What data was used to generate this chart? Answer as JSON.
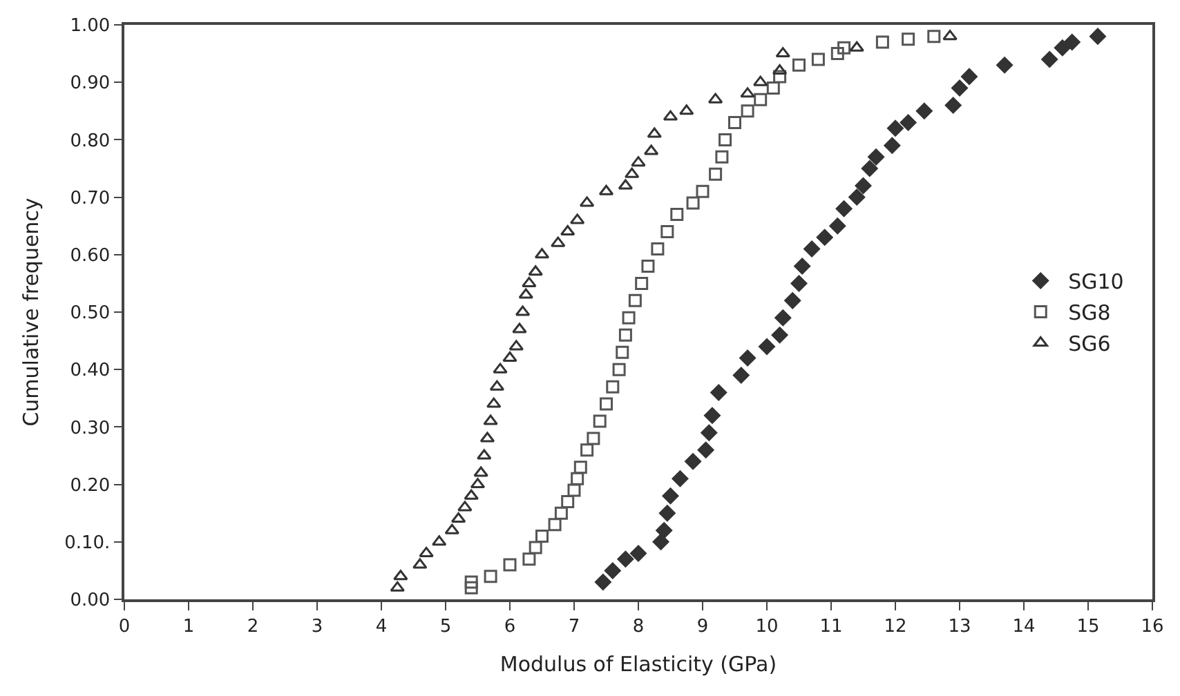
{
  "chart_data": {
    "type": "scatter",
    "xlabel": "Modulus of Elasticity (GPa)",
    "ylabel": "Cumulative frequency",
    "xlim": [
      0,
      16
    ],
    "xticks": [
      0,
      1,
      2,
      3,
      4,
      5,
      6,
      7,
      8,
      9,
      10,
      11,
      12,
      13,
      14,
      15,
      16
    ],
    "ylim": [
      0,
      1
    ],
    "yticks": [
      {
        "value": 0,
        "label": "0.00"
      },
      {
        "value": 0.1,
        "label": "0.10."
      },
      {
        "value": 0.2,
        "label": "0.20"
      },
      {
        "value": 0.3,
        "label": "0.30"
      },
      {
        "value": 0.4,
        "label": "0.40"
      },
      {
        "value": 0.5,
        "label": "0.50"
      },
      {
        "value": 0.6,
        "label": "0.60"
      },
      {
        "value": 0.7,
        "label": "0.70"
      },
      {
        "value": 0.8,
        "label": "0.80"
      },
      {
        "value": 0.9,
        "label": "0.90"
      },
      {
        "value": 1,
        "label": "1.00"
      }
    ],
    "grid": false,
    "legend": "right",
    "series": [
      {
        "name": "SG10",
        "color": "#333333",
        "marker": "diamond",
        "x": [
          7.45,
          7.6,
          7.8,
          8.0,
          8.35,
          8.4,
          8.45,
          8.5,
          8.65,
          8.85,
          9.05,
          9.1,
          9.15,
          9.25,
          9.6,
          9.7,
          10.0,
          10.2,
          10.25,
          10.4,
          10.5,
          10.55,
          10.7,
          10.9,
          11.1,
          11.2,
          11.4,
          11.5,
          11.6,
          11.7,
          11.95,
          12.0,
          12.2,
          12.45,
          12.9,
          13.0,
          13.15,
          13.7,
          14.4,
          14.6,
          14.75,
          15.15
        ],
        "values": [
          0.03,
          0.05,
          0.07,
          0.08,
          0.1,
          0.12,
          0.15,
          0.18,
          0.21,
          0.24,
          0.26,
          0.29,
          0.32,
          0.36,
          0.39,
          0.42,
          0.44,
          0.46,
          0.49,
          0.52,
          0.55,
          0.58,
          0.61,
          0.63,
          0.65,
          0.68,
          0.7,
          0.72,
          0.75,
          0.77,
          0.79,
          0.82,
          0.83,
          0.85,
          0.86,
          0.89,
          0.91,
          0.93,
          0.94,
          0.96,
          0.97,
          0.98
        ]
      },
      {
        "name": "SG8",
        "color": "#555555",
        "marker": "square",
        "x": [
          5.4,
          5.4,
          5.7,
          6.0,
          6.3,
          6.4,
          6.5,
          6.7,
          6.8,
          6.9,
          7.0,
          7.05,
          7.1,
          7.2,
          7.3,
          7.4,
          7.5,
          7.6,
          7.7,
          7.75,
          7.8,
          7.85,
          7.95,
          8.05,
          8.15,
          8.3,
          8.45,
          8.6,
          8.85,
          9.0,
          9.2,
          9.3,
          9.35,
          9.5,
          9.7,
          9.9,
          10.1,
          10.2,
          10.5,
          10.8,
          11.1,
          11.2,
          11.8,
          12.2,
          12.6
        ],
        "values": [
          0.02,
          0.03,
          0.04,
          0.06,
          0.07,
          0.09,
          0.11,
          0.13,
          0.15,
          0.17,
          0.19,
          0.21,
          0.23,
          0.26,
          0.28,
          0.31,
          0.34,
          0.37,
          0.4,
          0.43,
          0.46,
          0.49,
          0.52,
          0.55,
          0.58,
          0.61,
          0.64,
          0.67,
          0.69,
          0.71,
          0.74,
          0.77,
          0.8,
          0.83,
          0.85,
          0.87,
          0.89,
          0.91,
          0.93,
          0.94,
          0.95,
          0.96,
          0.97,
          0.975,
          0.98
        ]
      },
      {
        "name": "SG6",
        "color": "#333333",
        "marker": "triangle",
        "x": [
          4.25,
          4.3,
          4.6,
          4.7,
          4.9,
          5.1,
          5.2,
          5.3,
          5.4,
          5.5,
          5.55,
          5.6,
          5.65,
          5.7,
          5.75,
          5.8,
          5.85,
          6.0,
          6.1,
          6.15,
          6.2,
          6.25,
          6.3,
          6.4,
          6.5,
          6.75,
          6.9,
          7.05,
          7.2,
          7.5,
          7.8,
          7.9,
          8.0,
          8.2,
          8.25,
          8.5,
          8.75,
          9.2,
          9.7,
          9.9,
          10.2,
          10.25,
          11.4,
          12.85
        ],
        "values": [
          0.02,
          0.04,
          0.06,
          0.08,
          0.1,
          0.12,
          0.14,
          0.16,
          0.18,
          0.2,
          0.22,
          0.25,
          0.28,
          0.31,
          0.34,
          0.37,
          0.4,
          0.42,
          0.44,
          0.47,
          0.5,
          0.53,
          0.55,
          0.57,
          0.6,
          0.62,
          0.64,
          0.66,
          0.69,
          0.71,
          0.72,
          0.74,
          0.76,
          0.78,
          0.81,
          0.84,
          0.85,
          0.87,
          0.88,
          0.9,
          0.92,
          0.95,
          0.96,
          0.98
        ]
      }
    ]
  }
}
